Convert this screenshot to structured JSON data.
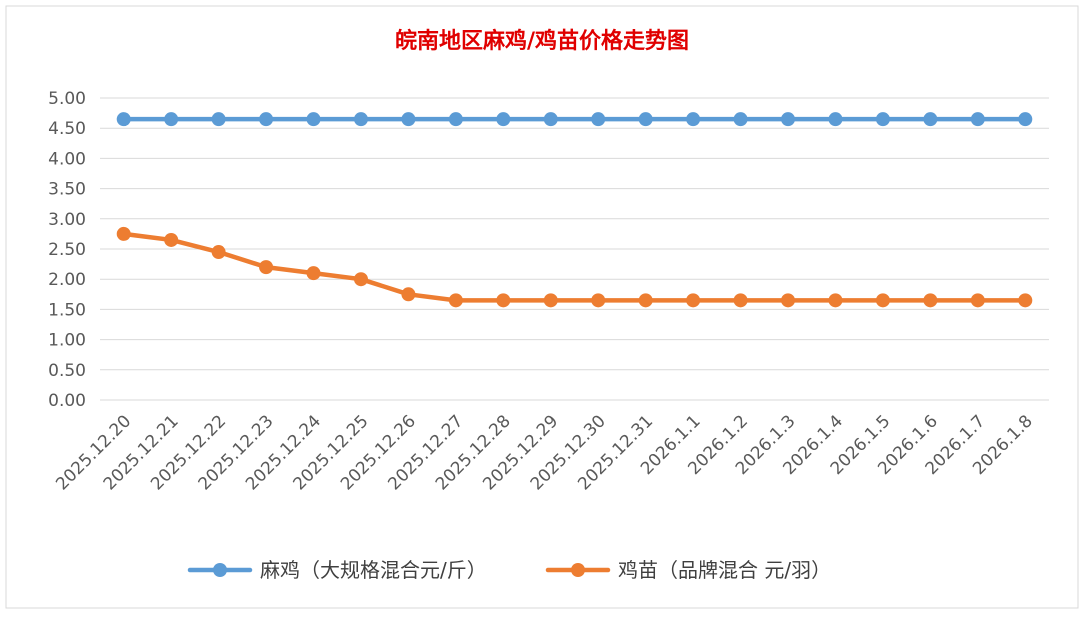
{
  "chart_data": {
    "type": "line",
    "title": "皖南地区麻鸡/鸡苗价格走势图",
    "title_color": "#e00000",
    "xlabel": "",
    "ylabel": "",
    "ylim": [
      0,
      5
    ],
    "yticks": [
      "0.00",
      "0.50",
      "1.00",
      "1.50",
      "2.00",
      "2.50",
      "3.00",
      "3.50",
      "4.00",
      "4.50",
      "5.00"
    ],
    "grid": true,
    "legend_position": "bottom",
    "categories": [
      "2025.12.20",
      "2025.12.21",
      "2025.12.22",
      "2025.12.23",
      "2025.12.24",
      "2025.12.25",
      "2025.12.26",
      "2025.12.27",
      "2025.12.28",
      "2025.12.29",
      "2025.12.30",
      "2025.12.31",
      "2026.1.1",
      "2026.1.2",
      "2026.1.3",
      "2026.1.4",
      "2026.1.5",
      "2026.1.6",
      "2026.1.7",
      "2026.1.8"
    ],
    "series": [
      {
        "name": "麻鸡（大规格混合元/斤）",
        "color": "#5b9bd5",
        "values": [
          4.65,
          4.65,
          4.65,
          4.65,
          4.65,
          4.65,
          4.65,
          4.65,
          4.65,
          4.65,
          4.65,
          4.65,
          4.65,
          4.65,
          4.65,
          4.65,
          4.65,
          4.65,
          4.65,
          4.65
        ]
      },
      {
        "name": "鸡苗（品牌混合 元/羽）",
        "color": "#ed7d31",
        "values": [
          2.75,
          2.65,
          2.45,
          2.2,
          2.1,
          2.0,
          1.75,
          1.65,
          1.65,
          1.65,
          1.65,
          1.65,
          1.65,
          1.65,
          1.65,
          1.65,
          1.65,
          1.65,
          1.65,
          1.65
        ]
      }
    ]
  }
}
